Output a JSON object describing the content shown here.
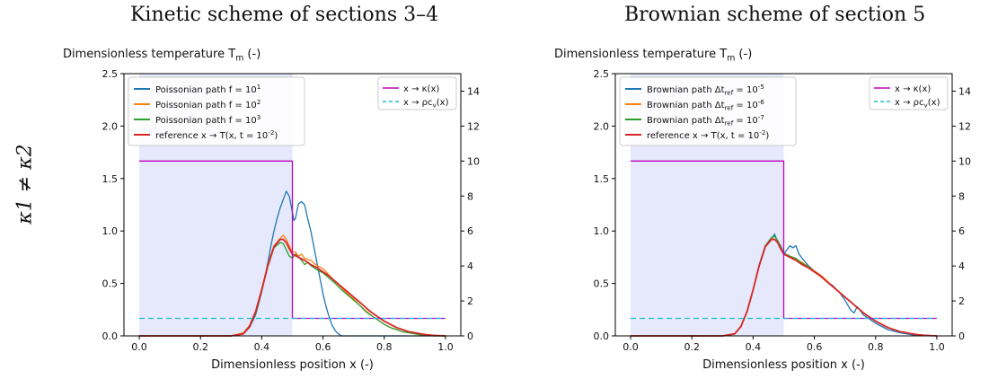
{
  "column_titles": [
    "Kinetic scheme of sections 3–4",
    "Brownian scheme of section 5"
  ],
  "row_label": "κ1 ≠ κ2",
  "colors": {
    "blue": "#1f77b4",
    "orange": "#ff7f0e",
    "green": "#2ca02c",
    "red": "#d62728",
    "magenta": "#bf00bf",
    "cyan": "#17becf",
    "shade": "#e6e8fb"
  },
  "chart_data": [
    {
      "type": "line",
      "title": "Kinetic scheme of sections 3–4",
      "ylabel": "Dimensionless temperature T_m (-)",
      "xlabel": "Dimensionless position x (-)",
      "xlim": [
        -0.05,
        1.05
      ],
      "ylim": [
        0,
        2.5
      ],
      "y2lim": [
        0,
        15
      ],
      "xticks": [
        "0.0",
        "0.2",
        "0.4",
        "0.6",
        "0.8",
        "1.0"
      ],
      "yticks": [
        "0.0",
        "0.5",
        "1.0",
        "1.5",
        "2.0",
        "2.5"
      ],
      "y2ticks": [
        "0",
        "2",
        "4",
        "6",
        "8",
        "10",
        "12",
        "14"
      ],
      "shaded_region": [
        0,
        0.5
      ],
      "legend_left": {
        "placement": "upper-left",
        "entries": [
          "Poissonian path f = 10^1",
          "Poissonian path f = 10^2",
          "Poissonian path f = 10^3",
          "reference x → T(x, t = 10^-2)"
        ]
      },
      "legend_right": {
        "placement": "upper-right",
        "entries": [
          "x → κ(x)",
          "x → ρc_v(x)"
        ]
      },
      "series": [
        {
          "name": "Poissonian path f = 10^1",
          "color": "blue",
          "x": [
            0.0,
            0.3,
            0.34,
            0.36,
            0.38,
            0.4,
            0.42,
            0.43,
            0.44,
            0.45,
            0.46,
            0.47,
            0.48,
            0.49,
            0.5,
            0.505,
            0.51,
            0.52,
            0.53,
            0.54,
            0.55,
            0.56,
            0.57,
            0.58,
            0.59,
            0.6,
            0.61,
            0.62,
            0.63,
            0.64,
            0.65,
            0.66,
            1.0
          ],
          "y": [
            0.0,
            0.0,
            0.02,
            0.08,
            0.2,
            0.42,
            0.7,
            0.86,
            1.0,
            1.12,
            1.22,
            1.3,
            1.38,
            1.33,
            1.18,
            1.1,
            1.12,
            1.26,
            1.28,
            1.25,
            1.12,
            1.0,
            0.85,
            0.7,
            0.55,
            0.4,
            0.28,
            0.18,
            0.1,
            0.05,
            0.02,
            0.0,
            0.0
          ]
        },
        {
          "name": "Poissonian path f = 10^2",
          "color": "orange",
          "x": [
            0.0,
            0.3,
            0.34,
            0.36,
            0.38,
            0.4,
            0.42,
            0.44,
            0.46,
            0.47,
            0.48,
            0.49,
            0.5,
            0.51,
            0.52,
            0.53,
            0.54,
            0.56,
            0.58,
            0.6,
            0.62,
            0.64,
            0.66,
            0.68,
            0.7,
            0.72,
            0.74,
            0.76,
            0.78,
            0.8,
            0.82,
            0.84,
            0.86,
            0.88,
            0.9,
            0.92,
            0.94,
            0.96,
            1.0
          ],
          "y": [
            0.0,
            0.0,
            0.03,
            0.1,
            0.24,
            0.45,
            0.68,
            0.86,
            0.93,
            0.96,
            0.92,
            0.86,
            0.8,
            0.8,
            0.76,
            0.78,
            0.74,
            0.72,
            0.67,
            0.64,
            0.58,
            0.52,
            0.46,
            0.4,
            0.35,
            0.29,
            0.24,
            0.19,
            0.15,
            0.11,
            0.08,
            0.06,
            0.04,
            0.03,
            0.02,
            0.01,
            0.005,
            0.0,
            0.0
          ]
        },
        {
          "name": "Poissonian path f = 10^3",
          "color": "green",
          "x": [
            0.0,
            0.3,
            0.34,
            0.36,
            0.38,
            0.4,
            0.42,
            0.44,
            0.46,
            0.47,
            0.48,
            0.49,
            0.5,
            0.51,
            0.52,
            0.53,
            0.54,
            0.55,
            0.56,
            0.58,
            0.6,
            0.62,
            0.64,
            0.66,
            0.68,
            0.7,
            0.72,
            0.74,
            0.76,
            0.78,
            0.8,
            0.82,
            0.84,
            0.86,
            0.88,
            0.9,
            0.92,
            0.94,
            0.96,
            1.0
          ],
          "y": [
            0.0,
            0.0,
            0.02,
            0.09,
            0.22,
            0.43,
            0.66,
            0.84,
            0.89,
            0.88,
            0.82,
            0.76,
            0.74,
            0.78,
            0.75,
            0.72,
            0.68,
            0.7,
            0.67,
            0.63,
            0.6,
            0.55,
            0.5,
            0.44,
            0.39,
            0.34,
            0.29,
            0.23,
            0.19,
            0.15,
            0.11,
            0.08,
            0.06,
            0.04,
            0.03,
            0.02,
            0.01,
            0.005,
            0.0,
            0.0
          ]
        },
        {
          "name": "reference x → T(x, t = 10^-2)",
          "color": "red",
          "x": [
            0.0,
            0.3,
            0.34,
            0.36,
            0.38,
            0.4,
            0.42,
            0.44,
            0.46,
            0.47,
            0.48,
            0.49,
            0.5,
            0.52,
            0.54,
            0.56,
            0.58,
            0.6,
            0.62,
            0.64,
            0.66,
            0.68,
            0.7,
            0.72,
            0.74,
            0.76,
            0.78,
            0.8,
            0.82,
            0.84,
            0.86,
            0.88,
            0.9,
            0.92,
            0.94,
            0.96,
            1.0
          ],
          "y": [
            0.0,
            0.0,
            0.02,
            0.09,
            0.23,
            0.44,
            0.67,
            0.85,
            0.92,
            0.92,
            0.89,
            0.83,
            0.78,
            0.75,
            0.72,
            0.68,
            0.65,
            0.61,
            0.57,
            0.52,
            0.47,
            0.42,
            0.37,
            0.32,
            0.27,
            0.22,
            0.18,
            0.14,
            0.11,
            0.08,
            0.06,
            0.04,
            0.03,
            0.02,
            0.01,
            0.005,
            0.0
          ]
        },
        {
          "name": "x → κ(x)",
          "color": "magenta",
          "axis": "right",
          "x": [
            0.0,
            0.5,
            0.5,
            1.0
          ],
          "y": [
            10,
            10,
            1,
            1
          ]
        },
        {
          "name": "x → ρc_v(x)",
          "color": "cyan",
          "axis": "right",
          "dashed": true,
          "x": [
            0.0,
            1.0
          ],
          "y": [
            1,
            1
          ]
        }
      ]
    },
    {
      "type": "line",
      "title": "Brownian scheme of section 5",
      "ylabel": "Dimensionless temperature T_m (-)",
      "xlabel": "Dimensionless position x (-)",
      "xlim": [
        -0.05,
        1.05
      ],
      "ylim": [
        0,
        2.5
      ],
      "y2lim": [
        0,
        15
      ],
      "xticks": [
        "0.0",
        "0.2",
        "0.4",
        "0.6",
        "0.8",
        "1.0"
      ],
      "yticks": [
        "0.0",
        "0.5",
        "1.0",
        "1.5",
        "2.0",
        "2.5"
      ],
      "y2ticks": [
        "0",
        "2",
        "4",
        "6",
        "8",
        "10",
        "12",
        "14"
      ],
      "shaded_region": [
        0,
        0.5
      ],
      "legend_left": {
        "placement": "upper-left",
        "entries": [
          "Brownian path Δt_ref = 10^-5",
          "Brownian path Δt_ref = 10^-6",
          "Brownian path Δt_ref = 10^-7",
          "reference x → T(x, t = 10^-2)"
        ]
      },
      "legend_right": {
        "placement": "upper-right",
        "entries": [
          "x → κ(x)",
          "x → ρc_v(x)"
        ]
      },
      "series": [
        {
          "name": "Brownian path Δt_ref = 10^-5",
          "color": "blue",
          "x": [
            0.0,
            0.3,
            0.34,
            0.36,
            0.38,
            0.4,
            0.42,
            0.44,
            0.46,
            0.47,
            0.48,
            0.49,
            0.5,
            0.51,
            0.52,
            0.53,
            0.54,
            0.55,
            0.56,
            0.58,
            0.6,
            0.62,
            0.64,
            0.66,
            0.68,
            0.7,
            0.72,
            0.73,
            0.74,
            0.76,
            0.78,
            0.8,
            0.84,
            0.88,
            0.92,
            0.96,
            1.0
          ],
          "y": [
            0.0,
            0.0,
            0.02,
            0.09,
            0.23,
            0.44,
            0.68,
            0.86,
            0.93,
            0.97,
            0.9,
            0.86,
            0.78,
            0.82,
            0.86,
            0.84,
            0.86,
            0.78,
            0.74,
            0.67,
            0.62,
            0.58,
            0.52,
            0.48,
            0.42,
            0.34,
            0.24,
            0.22,
            0.28,
            0.2,
            0.16,
            0.12,
            0.06,
            0.03,
            0.01,
            0.005,
            0.0
          ]
        },
        {
          "name": "Brownian path Δt_ref = 10^-6",
          "color": "orange",
          "x": [
            0.0,
            0.3,
            0.34,
            0.36,
            0.38,
            0.4,
            0.42,
            0.44,
            0.46,
            0.47,
            0.48,
            0.49,
            0.5,
            0.52,
            0.54,
            0.56,
            0.58,
            0.6,
            0.62,
            0.64,
            0.66,
            0.68,
            0.7,
            0.72,
            0.74,
            0.76,
            0.78,
            0.8,
            0.82,
            0.84,
            0.86,
            0.88,
            0.9,
            0.92,
            0.94,
            0.96,
            1.0
          ],
          "y": [
            0.0,
            0.0,
            0.02,
            0.09,
            0.23,
            0.44,
            0.67,
            0.85,
            0.93,
            0.92,
            0.9,
            0.84,
            0.78,
            0.76,
            0.73,
            0.7,
            0.66,
            0.62,
            0.58,
            0.53,
            0.47,
            0.42,
            0.37,
            0.32,
            0.27,
            0.22,
            0.18,
            0.14,
            0.11,
            0.08,
            0.06,
            0.04,
            0.03,
            0.02,
            0.01,
            0.005,
            0.0
          ]
        },
        {
          "name": "Brownian path Δt_ref = 10^-7",
          "color": "green",
          "x": [
            0.0,
            0.3,
            0.34,
            0.36,
            0.38,
            0.4,
            0.42,
            0.44,
            0.46,
            0.47,
            0.48,
            0.49,
            0.5,
            0.52,
            0.54,
            0.56,
            0.58,
            0.6,
            0.62,
            0.64,
            0.66,
            0.68,
            0.7,
            0.72,
            0.74,
            0.76,
            0.78,
            0.8,
            0.82,
            0.84,
            0.86,
            0.88,
            0.9,
            0.92,
            0.94,
            0.96,
            1.0
          ],
          "y": [
            0.0,
            0.0,
            0.02,
            0.09,
            0.23,
            0.44,
            0.67,
            0.86,
            0.94,
            0.95,
            0.91,
            0.85,
            0.79,
            0.76,
            0.74,
            0.69,
            0.66,
            0.61,
            0.57,
            0.52,
            0.47,
            0.42,
            0.37,
            0.32,
            0.27,
            0.22,
            0.18,
            0.14,
            0.11,
            0.08,
            0.06,
            0.04,
            0.03,
            0.02,
            0.01,
            0.005,
            0.0
          ]
        },
        {
          "name": "reference x → T(x, t = 10^-2)",
          "color": "red",
          "x": [
            0.0,
            0.3,
            0.34,
            0.36,
            0.38,
            0.4,
            0.42,
            0.44,
            0.46,
            0.47,
            0.48,
            0.49,
            0.5,
            0.52,
            0.54,
            0.56,
            0.58,
            0.6,
            0.62,
            0.64,
            0.66,
            0.68,
            0.7,
            0.72,
            0.74,
            0.76,
            0.78,
            0.8,
            0.82,
            0.84,
            0.86,
            0.88,
            0.9,
            0.92,
            0.94,
            0.96,
            1.0
          ],
          "y": [
            0.0,
            0.0,
            0.02,
            0.09,
            0.23,
            0.44,
            0.67,
            0.85,
            0.92,
            0.92,
            0.89,
            0.83,
            0.78,
            0.75,
            0.72,
            0.68,
            0.65,
            0.61,
            0.57,
            0.52,
            0.47,
            0.42,
            0.37,
            0.32,
            0.27,
            0.22,
            0.18,
            0.14,
            0.11,
            0.08,
            0.06,
            0.04,
            0.03,
            0.02,
            0.01,
            0.005,
            0.0
          ]
        },
        {
          "name": "x → κ(x)",
          "color": "magenta",
          "axis": "right",
          "x": [
            0.0,
            0.5,
            0.5,
            1.0
          ],
          "y": [
            10,
            10,
            1,
            1
          ]
        },
        {
          "name": "x → ρc_v(x)",
          "color": "cyan",
          "axis": "right",
          "dashed": true,
          "x": [
            0.0,
            1.0
          ],
          "y": [
            1,
            1
          ]
        }
      ]
    }
  ]
}
